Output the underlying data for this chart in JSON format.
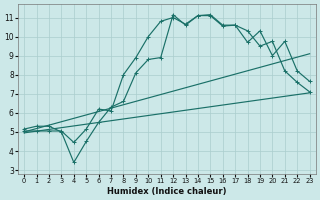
{
  "xlabel": "Humidex (Indice chaleur)",
  "bg_color": "#cce8e8",
  "grid_color": "#aacece",
  "line_color": "#1a7068",
  "xlim": [
    -0.5,
    23.5
  ],
  "ylim": [
    2.8,
    11.7
  ],
  "yticks": [
    3,
    4,
    5,
    6,
    7,
    8,
    9,
    10,
    11
  ],
  "xticks": [
    0,
    1,
    2,
    3,
    4,
    5,
    6,
    7,
    8,
    9,
    10,
    11,
    12,
    13,
    14,
    15,
    16,
    17,
    18,
    19,
    20,
    21,
    22,
    23
  ],
  "curve1_x": [
    0,
    1,
    2,
    3,
    4,
    5,
    6,
    7,
    8,
    9,
    10,
    11,
    12,
    13,
    14,
    15,
    16,
    17,
    18,
    19,
    20,
    21,
    22,
    23
  ],
  "curve1_y": [
    5.15,
    5.3,
    5.3,
    5.0,
    3.4,
    4.5,
    5.5,
    6.3,
    6.6,
    8.1,
    8.8,
    8.9,
    11.15,
    10.6,
    11.1,
    11.1,
    10.55,
    10.6,
    9.7,
    10.3,
    9.0,
    9.75,
    8.2,
    7.65
  ],
  "curve2_x": [
    0,
    1,
    2,
    3,
    4,
    5,
    6,
    7,
    8,
    9,
    10,
    11,
    12,
    13,
    14,
    15,
    16,
    17,
    18,
    19,
    20,
    21,
    22,
    23
  ],
  "curve2_y": [
    5.05,
    5.05,
    5.05,
    5.05,
    4.45,
    5.15,
    6.2,
    6.1,
    8.0,
    8.9,
    10.0,
    10.8,
    11.0,
    10.65,
    11.1,
    11.15,
    10.6,
    10.6,
    10.3,
    9.5,
    9.75,
    8.2,
    7.6,
    7.1
  ],
  "line3_x": [
    0,
    23
  ],
  "line3_y": [
    5.0,
    9.1
  ],
  "line4_x": [
    0,
    23
  ],
  "line4_y": [
    4.95,
    7.05
  ]
}
